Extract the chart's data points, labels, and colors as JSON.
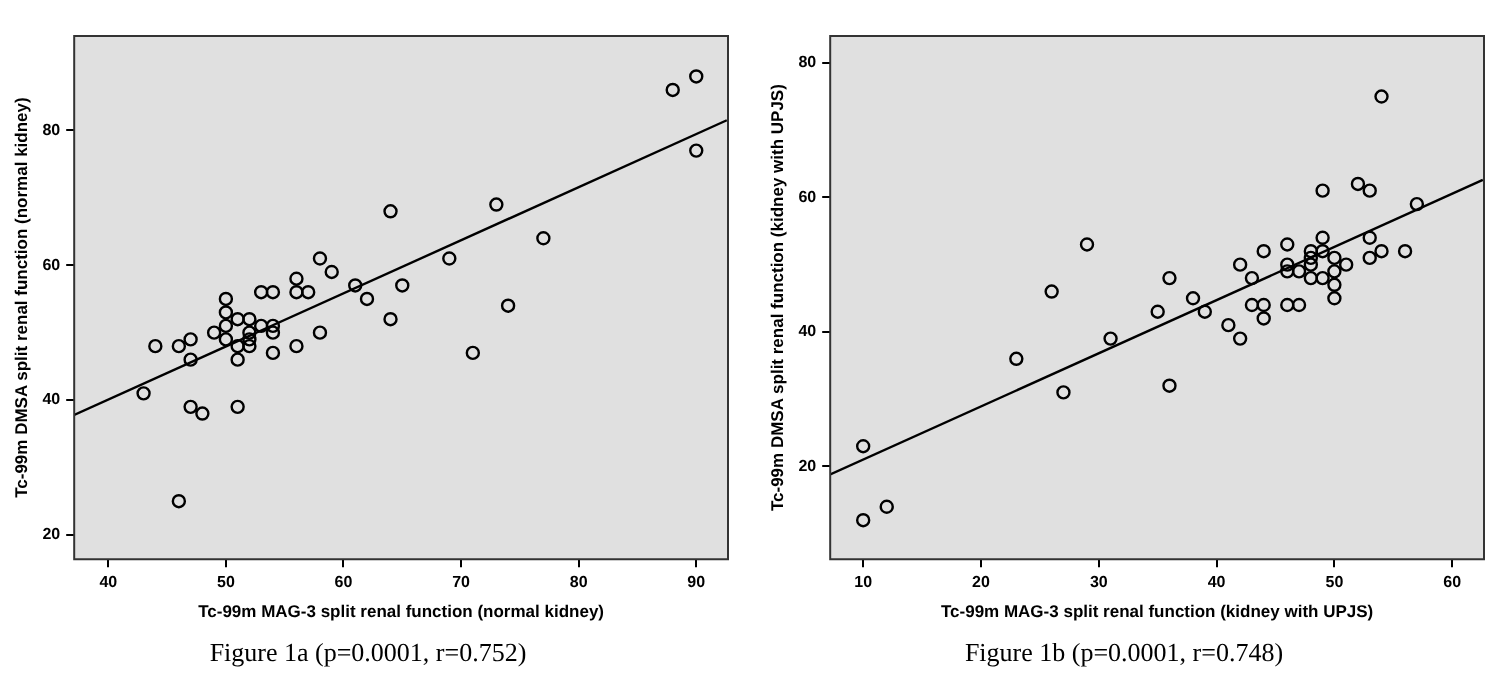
{
  "chart_data": [
    {
      "type": "scatter",
      "title": "Figure 1a (p=0.0001, r=0.752)",
      "xlabel": "Tc-99m MAG-3 split renal function (normal kidney)",
      "ylabel": "Tc-99m DMSA split renal function (normal kidney)",
      "xlim": [
        37.1,
        92.7
      ],
      "ylim": [
        16.4,
        94
      ],
      "xticks": [
        40,
        50,
        60,
        70,
        80,
        90
      ],
      "yticks": [
        20,
        40,
        60,
        80
      ],
      "grid": false,
      "series": [
        {
          "type": "scatter",
          "marker": "circle",
          "color": "#000000",
          "x": [
            43,
            44,
            46,
            46,
            47,
            47,
            47,
            48,
            49,
            50,
            50,
            50,
            50,
            51,
            51,
            51,
            51,
            52,
            52,
            52,
            52,
            53,
            53,
            54,
            54,
            54,
            54,
            56,
            56,
            56,
            57,
            58,
            58,
            59,
            61,
            62,
            64,
            64,
            65,
            69,
            71,
            73,
            74,
            77,
            88,
            90,
            90
          ],
          "values": [
            41,
            48,
            48,
            25,
            49,
            46,
            39,
            38,
            50,
            55,
            53,
            51,
            49,
            52,
            48,
            46,
            39,
            52,
            50,
            48,
            49,
            56,
            51,
            56,
            51,
            50,
            47,
            58,
            56,
            48,
            56,
            61,
            50,
            59,
            57,
            55,
            68,
            52,
            57,
            61,
            47,
            69,
            54,
            64,
            86,
            88,
            77
          ]
        },
        {
          "type": "line",
          "marker": "none",
          "color": "#000000",
          "x": [
            37.1,
            92.6
          ],
          "values": [
            37.8,
            81.5
          ]
        }
      ]
    },
    {
      "type": "scatter",
      "title": "Figure 1b (p=0.0001, r=0.748)",
      "xlabel": "Tc-99m MAG-3 split renal function (kidney with UPJS)",
      "ylabel": "Tc-99m DMSA split renal function (kidney with UPJS)",
      "xlim": [
        7.2,
        62.7
      ],
      "ylim": [
        6.2,
        84
      ],
      "xticks": [
        10,
        20,
        30,
        40,
        50,
        60
      ],
      "yticks": [
        20,
        40,
        60,
        80
      ],
      "grid": false,
      "series": [
        {
          "type": "scatter",
          "marker": "circle",
          "color": "#000000",
          "x": [
            10,
            10,
            12,
            23,
            26,
            27,
            29,
            31,
            35,
            36,
            36,
            38,
            39,
            41,
            42,
            42,
            43,
            43,
            44,
            44,
            44,
            46,
            46,
            46,
            46,
            47,
            47,
            48,
            48,
            48,
            48,
            49,
            49,
            49,
            49,
            50,
            50,
            50,
            50,
            51,
            52,
            53,
            53,
            53,
            54,
            54,
            56,
            57
          ],
          "values": [
            23,
            12,
            14,
            36,
            46,
            31,
            53,
            39,
            43,
            48,
            32,
            45,
            43,
            41,
            50,
            39,
            48,
            44,
            52,
            44,
            42,
            53,
            50,
            49,
            44,
            49,
            44,
            52,
            51,
            50,
            48,
            61,
            54,
            52,
            48,
            51,
            49,
            47,
            45,
            50,
            62,
            61,
            54,
            51,
            75,
            52,
            52,
            59
          ]
        },
        {
          "type": "line",
          "marker": "none",
          "color": "#000000",
          "x": [
            7.2,
            62.6
          ],
          "values": [
            18.8,
            62.6
          ]
        }
      ]
    }
  ]
}
